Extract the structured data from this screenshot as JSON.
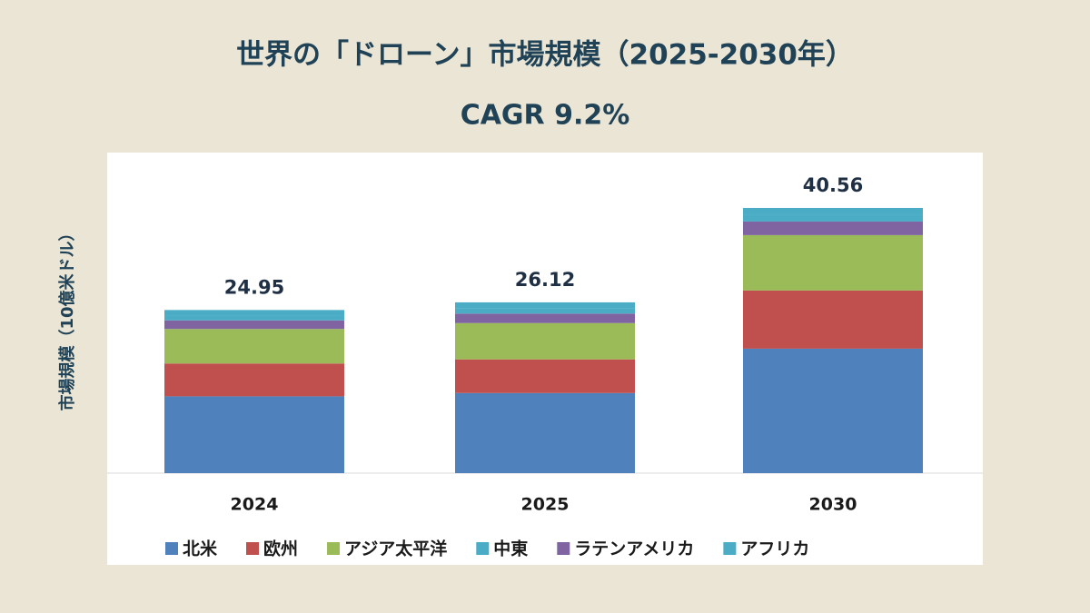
{
  "chart_data": {
    "type": "stacked-bar",
    "title": "世界の「ドローン」市場規模（2025-2030年）",
    "subtitle": "CAGR 9.2%",
    "y_label": "市場規模（10億米ドル）",
    "categories": [
      "2024",
      "2025",
      "2030"
    ],
    "totals": [
      24.95,
      26.12,
      40.56
    ],
    "series": [
      {
        "name": "北米",
        "color": "#4f81bd",
        "values": [
          11.75,
          12.25,
          19.04
        ]
      },
      {
        "name": "欧州",
        "color": "#c0504d",
        "values": [
          5.02,
          5.15,
          8.89
        ]
      },
      {
        "name": "アジア太平洋",
        "color": "#9bbb59",
        "values": [
          5.28,
          5.55,
          8.47
        ]
      },
      {
        "name": "中東",
        "color": "#4bacc6",
        "values": [
          0.8,
          0.86,
          1.04
        ]
      },
      {
        "name": "ラテンアメリカ",
        "color": "#8064a2",
        "values": [
          1.31,
          1.45,
          2.08
        ]
      },
      {
        "name": "アフリカ",
        "color": "#4bacc6",
        "values": [
          0.79,
          0.86,
          1.04
        ]
      }
    ],
    "ylim": [
      0,
      45
    ]
  }
}
